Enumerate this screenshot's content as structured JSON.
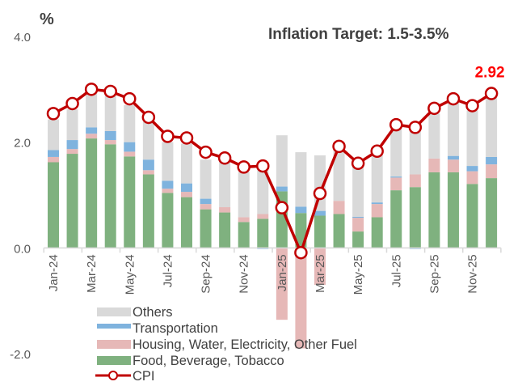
{
  "chart_data": {
    "type": "bar",
    "subtype": "stacked-bar-with-line",
    "title": "Inflation Target: 1.5-3.5%",
    "ylabel": "%",
    "xlabel": "",
    "ylim": [
      -2.0,
      4.0
    ],
    "yticks": [
      4.0,
      2.0,
      0.0,
      -2.0
    ],
    "ytick_labels": [
      "4.0",
      "2.0",
      "0.0",
      "-2.0"
    ],
    "grid": false,
    "legend_position": "bottom-left",
    "categories": [
      "Jan-24",
      "Feb-24",
      "Mar-24",
      "Apr-24",
      "May-24",
      "Jun-24",
      "Jul-24",
      "Aug-24",
      "Sep-24",
      "Oct-24",
      "Nov-24",
      "Dec-24",
      "Jan-25",
      "Feb-25",
      "Mar-25",
      "Apr-25",
      "May-25",
      "Jun-25",
      "Jul-25",
      "Aug-25",
      "Sep-25",
      "Oct-25",
      "Nov-25",
      "Dec-25"
    ],
    "xtick_labels": [
      "Jan-24",
      "Mar-24",
      "May-24",
      "Jul-24",
      "Sep-24",
      "Nov-24",
      "Jan-25",
      "Mar-25",
      "May-25",
      "Jul-25",
      "Sep-25",
      "Nov-25"
    ],
    "series": [
      {
        "name": "Food, Beverage, Tobacco",
        "kind": "bar",
        "color": "#7fb17f",
        "values": [
          1.62,
          1.78,
          2.07,
          1.96,
          1.73,
          1.39,
          1.04,
          0.96,
          0.73,
          0.67,
          0.49,
          0.55,
          1.07,
          0.66,
          0.61,
          0.64,
          0.31,
          0.58,
          1.09,
          1.15,
          1.43,
          1.43,
          1.21,
          1.32
        ]
      },
      {
        "name": "Housing, Water, Electricity, Other Fuel",
        "kind": "bar",
        "color": "#e6b8b7",
        "values": [
          0.1,
          0.09,
          0.09,
          0.08,
          0.09,
          0.08,
          0.08,
          0.1,
          0.1,
          0.1,
          0.09,
          0.09,
          -1.36,
          -1.9,
          -0.7,
          0.25,
          0.26,
          0.25,
          0.24,
          0.24,
          0.26,
          0.24,
          0.24,
          0.26
        ]
      },
      {
        "name": "Transportation",
        "kind": "bar",
        "color": "#7fb3de",
        "values": [
          0.13,
          0.17,
          0.12,
          0.17,
          0.18,
          0.2,
          0.15,
          0.16,
          0.1,
          0.0,
          0.0,
          -0.02,
          0.09,
          0.12,
          0.09,
          0.0,
          0.02,
          0.03,
          0.02,
          -0.02,
          0.0,
          0.07,
          0.1,
          0.14
        ]
      },
      {
        "name": "Others",
        "kind": "bar",
        "color": "#d9d9d9",
        "values": [
          0.58,
          0.58,
          0.64,
          0.67,
          0.7,
          0.72,
          0.73,
          0.75,
          0.74,
          0.85,
          0.86,
          0.83,
          0.97,
          1.03,
          1.05,
          1.0,
          1.0,
          0.94,
          0.95,
          0.86,
          0.85,
          1.06,
          1.05,
          1.13
        ]
      },
      {
        "name": "CPI",
        "kind": "line",
        "color": "#c00000",
        "values": [
          2.54,
          2.73,
          3.0,
          2.96,
          2.82,
          2.47,
          2.11,
          2.08,
          1.81,
          1.7,
          1.53,
          1.55,
          0.76,
          -0.09,
          1.03,
          1.92,
          1.6,
          1.83,
          2.33,
          2.28,
          2.64,
          2.82,
          2.69,
          2.92
        ]
      }
    ],
    "annotations": [
      {
        "text": "2.92",
        "category": "Dec-25",
        "series": "CPI",
        "color": "#ff0000"
      }
    ]
  }
}
